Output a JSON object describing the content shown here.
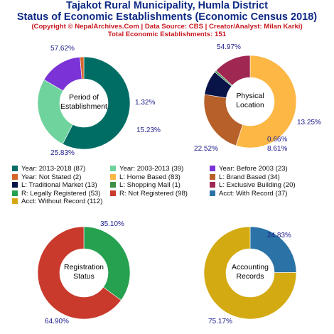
{
  "header": {
    "title_line1": "Tajakot Rural Municipality, Humla District",
    "title_line2": "Status of Economic Establishments (Economic Census 2018)",
    "copyright": "(Copyright © NepalArchives.Com | Data Source: CBS | Creator/Analyst: Milan Karki)",
    "total": "Total Economic Establishments: 151"
  },
  "chart_data": [
    {
      "type": "pie",
      "title": "Period of Establishment",
      "center_lines": [
        "Period of",
        "Establishment"
      ],
      "slices": [
        {
          "label": "Year: 2013-2018",
          "value": 87,
          "percent": "57.62%",
          "color": "#006d64"
        },
        {
          "label": "Year: 2003-2013",
          "value": 39,
          "percent": "25.83%",
          "color": "#6fd39e"
        },
        {
          "label": "Year: Before 2003",
          "value": 23,
          "percent": "15.23%",
          "color": "#7b33d8"
        },
        {
          "label": "Year: Not Stated",
          "value": 2,
          "percent": "1.32%",
          "color": "#d4662b"
        }
      ]
    },
    {
      "type": "pie",
      "title": "Physical Location",
      "center_lines": [
        "Physical",
        "Location"
      ],
      "slices": [
        {
          "label": "L: Home Based",
          "value": 83,
          "percent": "54.97%",
          "color": "#fdb745"
        },
        {
          "label": "L: Brand Based",
          "value": 34,
          "percent": "22.52%",
          "color": "#b8602a"
        },
        {
          "label": "L: Traditional Market",
          "value": 13,
          "percent": "8.61%",
          "color": "#081347"
        },
        {
          "label": "L: Shopping Mall",
          "value": 1,
          "percent": "0.66%",
          "color": "#3f8f47"
        },
        {
          "label": "L: Exclusive Building",
          "value": 20,
          "percent": "13.25%",
          "color": "#a02751"
        }
      ]
    },
    {
      "type": "pie",
      "title": "Registration Status",
      "center_lines": [
        "Registration",
        "Status"
      ],
      "slices": [
        {
          "label": "R: Legally Registered",
          "value": 53,
          "percent": "35.10%",
          "color": "#25a150"
        },
        {
          "label": "R: Not Registered",
          "value": 98,
          "percent": "64.90%",
          "color": "#c93a2c"
        }
      ]
    },
    {
      "type": "pie",
      "title": "Accounting Records",
      "center_lines": [
        "Accounting",
        "Records"
      ],
      "slices": [
        {
          "label": "Acct: With Record",
          "value": 37,
          "percent": "24.83%",
          "color": "#2b73a6"
        },
        {
          "label": "Acct: Without Record",
          "value": 112,
          "percent": "75.17%",
          "color": "#d4aa12"
        }
      ]
    }
  ],
  "legend": [
    {
      "text": "Year: 2013-2018 (87)",
      "color": "#006d64"
    },
    {
      "text": "Year: 2003-2013 (39)",
      "color": "#6fd39e"
    },
    {
      "text": "Year: Before 2003 (23)",
      "color": "#7b33d8"
    },
    {
      "text": "Year: Not Stated (2)",
      "color": "#d4662b"
    },
    {
      "text": "L: Home Based (83)",
      "color": "#fdb745"
    },
    {
      "text": "L: Brand Based (34)",
      "color": "#b8602a"
    },
    {
      "text": "L: Traditional Market (13)",
      "color": "#081347"
    },
    {
      "text": "L: Shopping Mall (1)",
      "color": "#3f8f47"
    },
    {
      "text": "L: Exclusive Building (20)",
      "color": "#a02751"
    },
    {
      "text": "R: Legally Registered (53)",
      "color": "#25a150"
    },
    {
      "text": "R: Not Registered (98)",
      "color": "#c93a2c"
    },
    {
      "text": "Acct: With Record (37)",
      "color": "#2b73a6"
    },
    {
      "text": "Acct: Without Record (112)",
      "color": "#d4aa12"
    }
  ]
}
